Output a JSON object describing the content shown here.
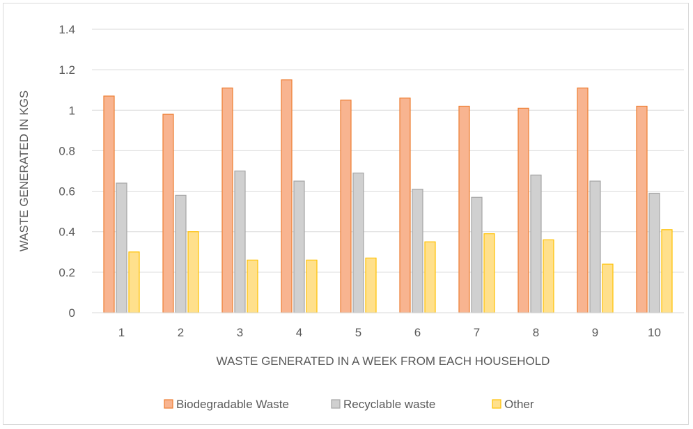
{
  "chart_data": {
    "type": "bar",
    "title": "",
    "xlabel": "WASTE GENERATED IN A WEEK FROM EACH HOUSEHOLD",
    "ylabel": "WASTE GENERATED IN KGS",
    "ylim": [
      0,
      1.4
    ],
    "yticks": [
      "0",
      "0.2",
      "0.4",
      "0.6",
      "0.8",
      "1",
      "1.2",
      "1.4"
    ],
    "categories": [
      "1",
      "2",
      "3",
      "4",
      "5",
      "6",
      "7",
      "8",
      "9",
      "10"
    ],
    "grid": true,
    "legend_position": "bottom",
    "series": [
      {
        "name": "Biodegradable Waste",
        "fill": "#f8b490",
        "stroke": "#ed7d31",
        "values": [
          1.07,
          0.98,
          1.11,
          1.15,
          1.05,
          1.06,
          1.02,
          1.01,
          1.11,
          1.02
        ]
      },
      {
        "name": "Recyclable waste",
        "fill": "#d0d0d0",
        "stroke": "#a5a5a5",
        "values": [
          0.64,
          0.58,
          0.7,
          0.65,
          0.69,
          0.61,
          0.57,
          0.68,
          0.65,
          0.59
        ]
      },
      {
        "name": "Other",
        "fill": "#ffe08c",
        "stroke": "#ffc000",
        "values": [
          0.3,
          0.4,
          0.26,
          0.26,
          0.27,
          0.35,
          0.39,
          0.36,
          0.24,
          0.41
        ]
      }
    ]
  }
}
